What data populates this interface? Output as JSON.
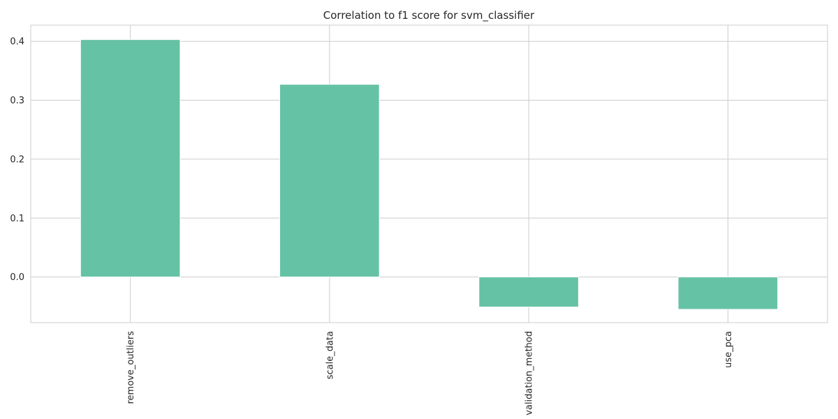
{
  "chart_data": {
    "type": "bar",
    "title": "Correlation to f1 score for svm_classifier",
    "xlabel": "",
    "ylabel": "",
    "categories": [
      "remove_outliers",
      "scale_data",
      "validation_method",
      "use_pca"
    ],
    "values": [
      0.403,
      0.327,
      -0.051,
      -0.055
    ],
    "ylim": [
      -0.0775,
      0.4275
    ],
    "yticks": [
      0.0,
      0.1,
      0.2,
      0.3,
      0.4
    ],
    "ytick_labels": [
      "0.0",
      "0.1",
      "0.2",
      "0.3",
      "0.4"
    ],
    "grid": true,
    "legend": "none",
    "x_tick_rotation": "vertical",
    "colors": {
      "bar": "#66c2a5",
      "grid": "#cccccc",
      "axes_edge": "#cccccc",
      "text": "#262626",
      "background": "#ffffff"
    }
  }
}
